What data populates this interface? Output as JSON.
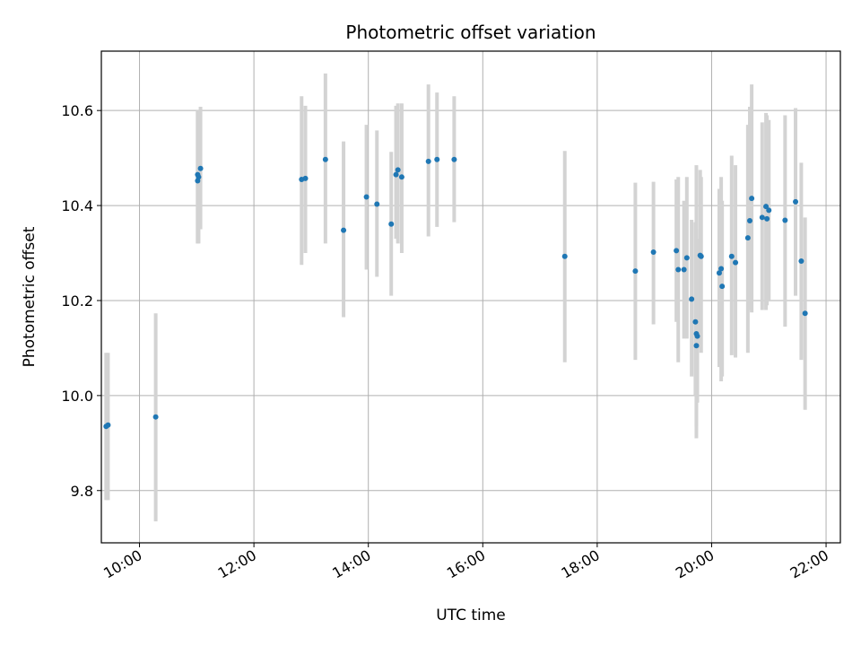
{
  "chart_data": {
    "type": "scatter",
    "title": "Photometric offset variation",
    "xlabel": "UTC time",
    "ylabel": "Photometric offset",
    "x_unit": "hours UTC",
    "xlim": [
      "09:20",
      "22:15"
    ],
    "ylim": [
      9.69,
      10.725
    ],
    "x_ticks": [
      "10:00",
      "12:00",
      "14:00",
      "16:00",
      "18:00",
      "20:00",
      "22:00"
    ],
    "y_ticks": [
      "9.8",
      "10.0",
      "10.2",
      "10.4",
      "10.6"
    ],
    "grid": true,
    "x_tick_rotation": 30,
    "colors": {
      "marker": "#1f77b4",
      "errorbar": "#d3d3d3",
      "grid": "#b0b0b0",
      "axes": "#000000"
    },
    "series": [
      {
        "x": [
          "09:25",
          "09:27",
          "10:17",
          "11:01",
          "11:01",
          "11:02",
          "11:04",
          "12:50",
          "12:54",
          "13:15",
          "13:34",
          "13:58",
          "14:09",
          "14:24",
          "14:29",
          "14:31",
          "14:35",
          "15:03",
          "15:12",
          "15:30",
          "17:26",
          "18:40",
          "18:59",
          "19:23",
          "19:25",
          "19:31",
          "19:34",
          "19:39",
          "19:43",
          "19:44",
          "19:44",
          "19:45",
          "19:48",
          "19:49",
          "20:08",
          "20:10",
          "20:11",
          "20:21",
          "20:25",
          "20:38",
          "20:40",
          "20:42",
          "20:53",
          "20:57",
          "20:58",
          "21:00",
          "21:17",
          "21:28",
          "21:34",
          "21:38"
        ],
        "y": [
          9.935,
          9.938,
          9.955,
          10.465,
          10.452,
          10.46,
          10.478,
          10.455,
          10.457,
          10.497,
          10.348,
          10.418,
          10.403,
          10.361,
          10.465,
          10.475,
          10.46,
          10.493,
          10.497,
          10.497,
          10.293,
          10.262,
          10.302,
          10.305,
          10.265,
          10.265,
          10.29,
          10.203,
          10.155,
          10.105,
          10.13,
          10.125,
          10.295,
          10.293,
          10.258,
          10.267,
          10.23,
          10.293,
          10.28,
          10.332,
          10.368,
          10.415,
          10.375,
          10.398,
          10.372,
          10.39,
          10.369,
          10.408,
          10.283,
          10.173
        ],
        "err_low": [
          9.78,
          9.78,
          9.735,
          10.32,
          10.32,
          10.32,
          10.35,
          10.275,
          10.3,
          10.32,
          10.165,
          10.265,
          10.25,
          10.21,
          10.33,
          10.32,
          10.3,
          10.335,
          10.355,
          10.365,
          10.07,
          10.075,
          10.15,
          10.155,
          10.07,
          10.12,
          10.12,
          10.04,
          10.0,
          9.935,
          9.91,
          9.985,
          10.1,
          10.09,
          10.06,
          10.03,
          10.04,
          10.085,
          10.08,
          10.09,
          10.18,
          10.175,
          10.18,
          10.18,
          10.19,
          10.2,
          10.145,
          10.21,
          10.075,
          9.97
        ],
        "err_high": [
          10.09,
          10.09,
          10.173,
          10.6,
          10.6,
          10.6,
          10.608,
          10.63,
          10.61,
          10.678,
          10.535,
          10.57,
          10.558,
          10.513,
          10.61,
          10.615,
          10.615,
          10.655,
          10.638,
          10.63,
          10.515,
          10.448,
          10.45,
          10.455,
          10.46,
          10.41,
          10.46,
          10.37,
          10.365,
          10.35,
          10.485,
          10.33,
          10.475,
          10.46,
          10.435,
          10.46,
          10.41,
          10.505,
          10.485,
          10.57,
          10.608,
          10.655,
          10.575,
          10.595,
          10.59,
          10.58,
          10.59,
          10.605,
          10.49,
          10.375
        ]
      }
    ]
  }
}
